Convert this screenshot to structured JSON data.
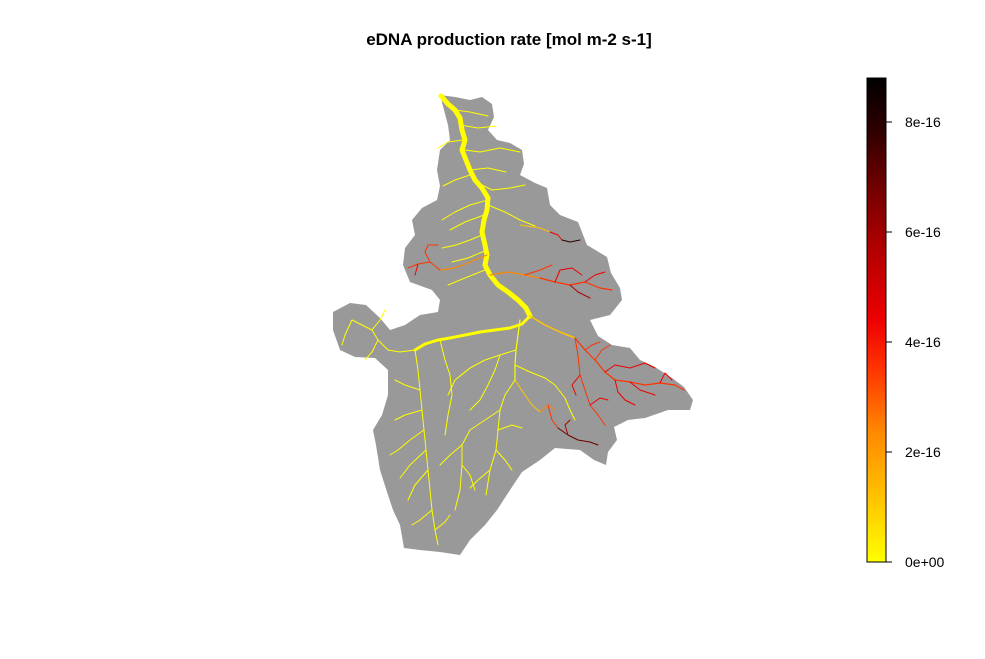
{
  "title": "eDNA production rate [mol m-2 s-1]",
  "colors": {
    "catchment": "#999999",
    "background": "#ffffff",
    "palette": [
      "#ffff00",
      "#ffc400",
      "#ff8800",
      "#ff3300",
      "#ee0000",
      "#b00000",
      "#6e0000",
      "#2a0000",
      "#000000"
    ]
  },
  "legend": {
    "min": 0,
    "max": 8.8e-16,
    "ticks": [
      {
        "value": 0,
        "label": "0e+00"
      },
      {
        "value": 2e-16,
        "label": "2e-16"
      },
      {
        "value": 4e-16,
        "label": "4e-16"
      },
      {
        "value": 6e-16,
        "label": "6e-16"
      },
      {
        "value": 8e-16,
        "label": "8e-16"
      }
    ]
  }
}
